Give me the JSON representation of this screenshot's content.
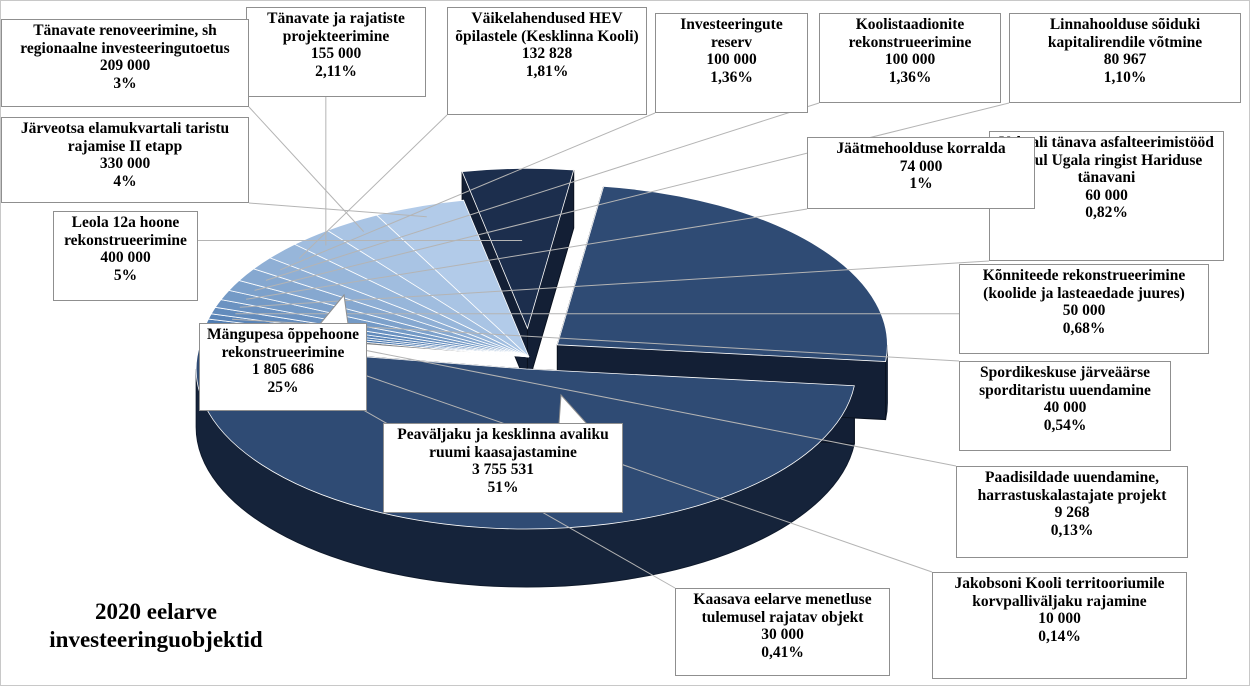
{
  "chart_data": {
    "type": "pie",
    "title": "2020 eelarve investeeringuobjektid",
    "style": "3d-exploded",
    "legend": "none",
    "colors": {
      "primary": "#2f4b74",
      "primary_dark": "#1c2e4d",
      "accent": "#3f6fa8",
      "gray": "#7f8183",
      "line": "#b4b4b4"
    },
    "slices": [
      {
        "id": "peavaljaku",
        "name": "Peaväljaku ja kesklinna avaliku ruumi kaasajastamine",
        "value": "3 755 531",
        "amount": 3755531,
        "percent": "51%"
      },
      {
        "id": "kaasava",
        "name": "Kaasava eelarve menetluse tulemusel rajatav objekt",
        "value": "30 000",
        "amount": 30000,
        "percent": "0,41%"
      },
      {
        "id": "jakobsoni",
        "name": "Jakobsoni Kooli territooriumile korvpalliväljaku rajamine",
        "value": "10 000",
        "amount": 10000,
        "percent": "0,14%"
      },
      {
        "id": "paadisildade",
        "name": "Paadisildade uuendamine, harrastuskalastajate projekt",
        "value": "9 268",
        "amount": 9268,
        "percent": "0,13%"
      },
      {
        "id": "spordikeskuse",
        "name": "Spordikeskuse järveäärse sporditaristu uuendamine",
        "value": "40 000",
        "amount": 40000,
        "percent": "0,54%"
      },
      {
        "id": "konniteede",
        "name": "Kõnniteede rekonstrueerimine (koolide ja lasteaedade juures)",
        "value": "50 000",
        "amount": 50000,
        "percent": "0,68%"
      },
      {
        "id": "vaksali",
        "name": "Vaksali tänava asfalteerimistööd lõigul Ugala ringist Hariduse tänavani",
        "value": "60 000",
        "amount": 60000,
        "percent": "0,82%"
      },
      {
        "id": "jaatmehoolduse",
        "name": "Jäätmehoolduse korralda",
        "value": "74 000",
        "amount": 74000,
        "percent": "1%"
      },
      {
        "id": "linnahoolduse",
        "name": "Linnahoolduse sõiduki kapitalirendile võtmine",
        "value": "80 967",
        "amount": 80967,
        "percent": "1,10%"
      },
      {
        "id": "koolistaadionite",
        "name": "Koolistaadionite rekonstrueerimine",
        "value": "100 000",
        "amount": 100000,
        "percent": "1,36%"
      },
      {
        "id": "investeeringute",
        "name": "Investeeringute reserv",
        "value": "100 000",
        "amount": 100000,
        "percent": "1,36%"
      },
      {
        "id": "vaikelahendused",
        "name": "Väikelahendused HEV õpilastele (Kesklinna Kooli)",
        "value": "132 828",
        "amount": 132828,
        "percent": "1,81%"
      },
      {
        "id": "tanavate-rajatiste",
        "name": "Tänavate ja rajatiste projekteerimine",
        "value": "155 000",
        "amount": 155000,
        "percent": "2,11%"
      },
      {
        "id": "tanavate-renoveerimine",
        "name": "Tänavate renoveerimine, sh regionaalne investeeringutoetus",
        "value": "209 000",
        "amount": 209000,
        "percent": "3%"
      },
      {
        "id": "jarveotsa",
        "name": "Järveotsa elamukvartali taristu rajamise II etapp",
        "value": "330 000",
        "amount": 330000,
        "percent": "4%"
      },
      {
        "id": "leola",
        "name": "Leola 12a hoone rekonstrueerimine",
        "value": "400 000",
        "amount": 400000,
        "percent": "5%"
      },
      {
        "id": "mangupesa",
        "name": "Mängupesa õppehoone rekonstrueerimine",
        "value": "1 805 686",
        "amount": 1805686,
        "percent": "25%"
      }
    ]
  }
}
